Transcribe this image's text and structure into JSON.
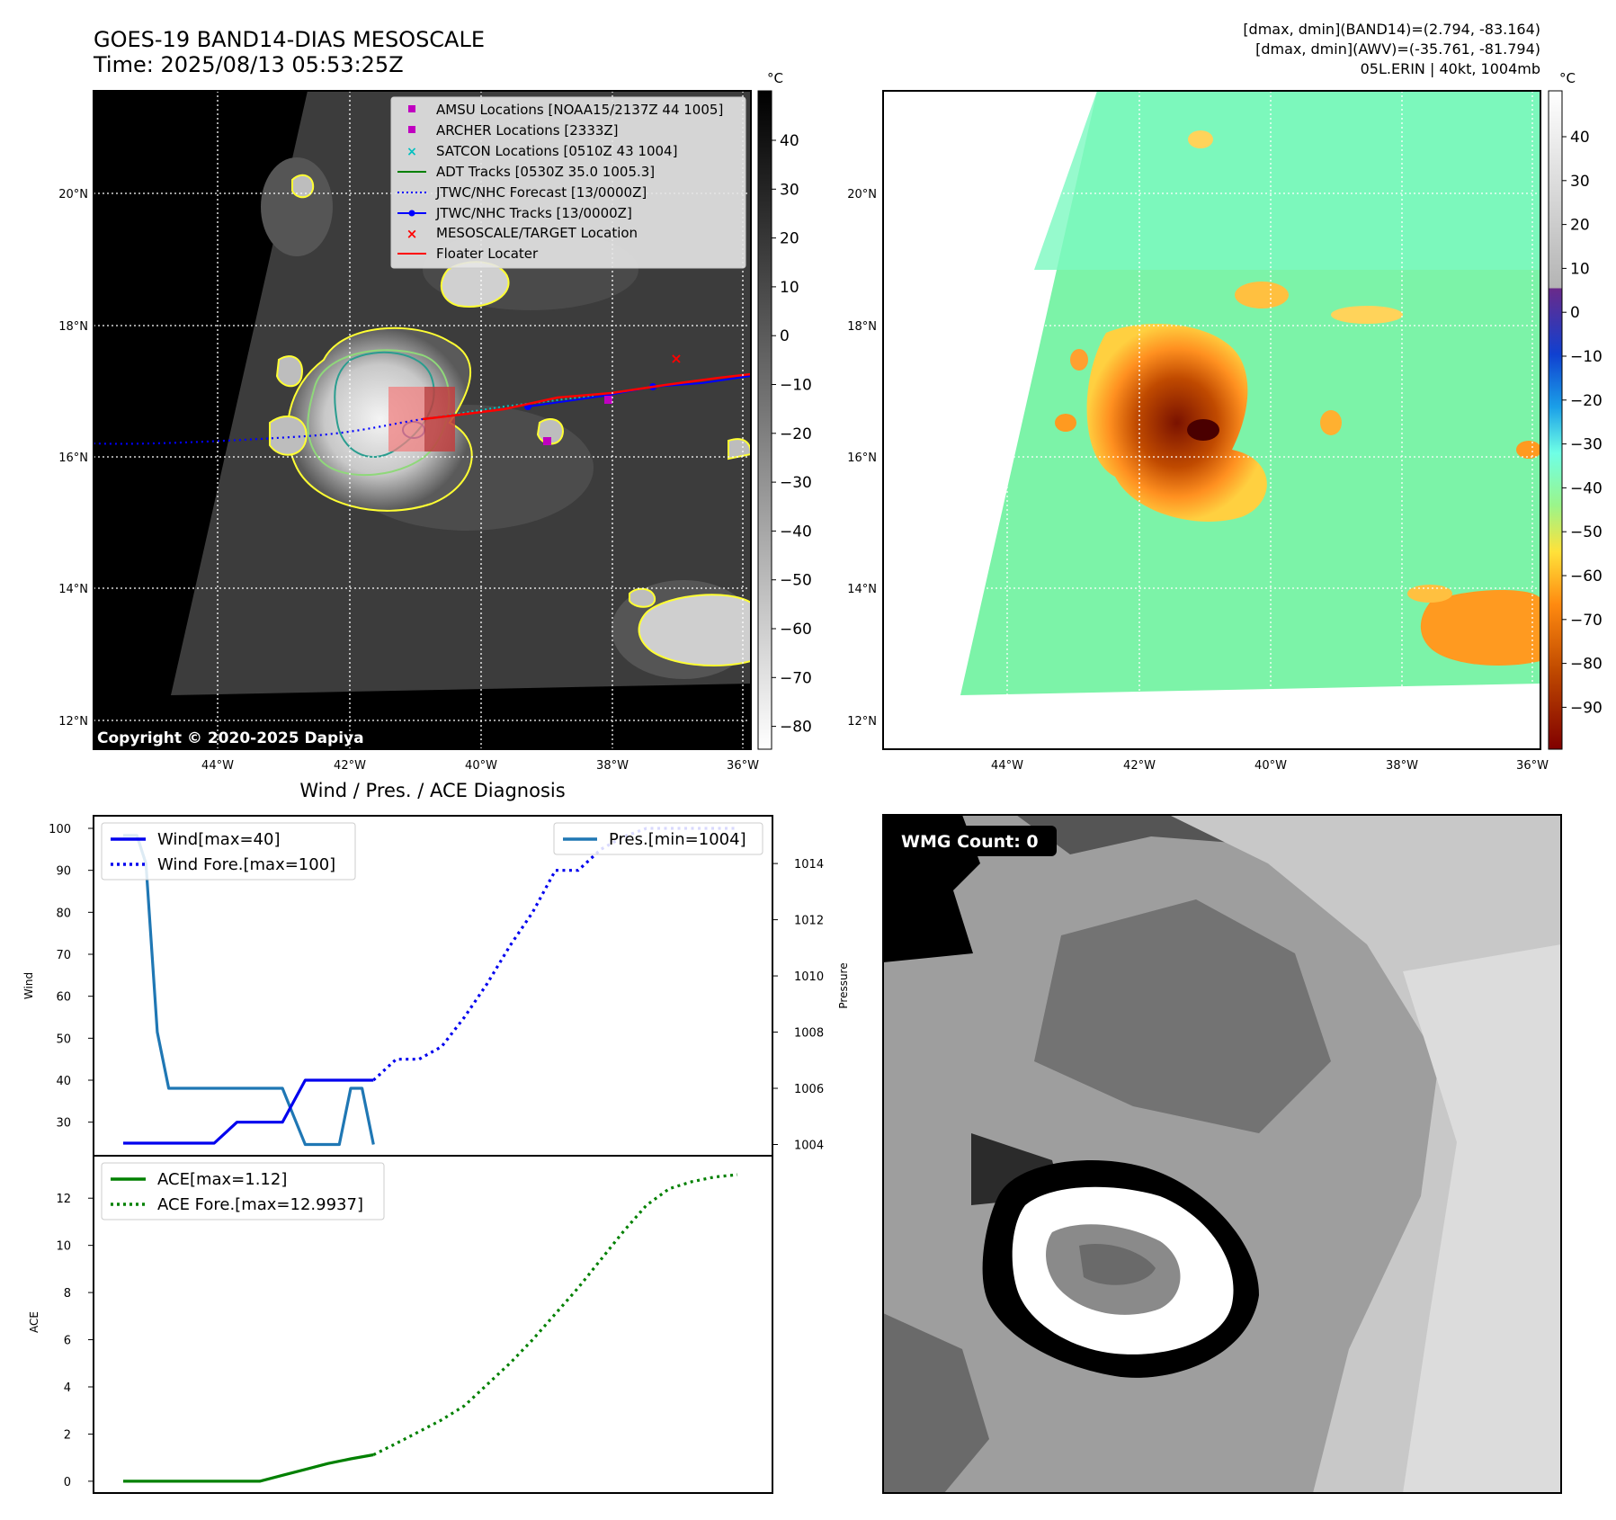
{
  "header": {
    "title_line1": "GOES-19 BAND14-DIAS MESOSCALE",
    "title_line2": "Time: 2025/08/13 05:53:25Z",
    "info_line1": "[dmax, dmin](BAND14)=(2.794, -83.164)",
    "info_line2": "[dmax, dmin](AWV)=(-35.761, -81.794)",
    "info_line3": "05L.ERIN | 40kt, 1004mb"
  },
  "map_axes": {
    "lon_labels": [
      "44°W",
      "42°W",
      "40°W",
      "38°W",
      "36°W"
    ],
    "lat_labels": [
      "20°N",
      "18°N",
      "16°N",
      "14°N",
      "12°N"
    ]
  },
  "colorbar_left": {
    "unit": "°C",
    "ticks": [
      "40",
      "30",
      "20",
      "10",
      "0",
      "−10",
      "−20",
      "−30",
      "−40",
      "−50",
      "−60",
      "−70",
      "−80"
    ]
  },
  "colorbar_right": {
    "unit": "°C",
    "ticks": [
      "40",
      "30",
      "20",
      "10",
      "0",
      "−10",
      "−20",
      "−30",
      "−40",
      "−50",
      "−60",
      "−70",
      "−80",
      "−90"
    ]
  },
  "legend": {
    "items": [
      "AMSU Locations [NOAA15/2137Z 44 1005]",
      "ARCHER Locations [2333Z]",
      "SATCON Locations [0510Z 43 1004]",
      "ADT Tracks [0530Z 35.0 1005.3]",
      "JTWC/NHC Forecast [13/0000Z]",
      "JTWC/NHC Tracks [13/0000Z]",
      "MESOSCALE/TARGET Location",
      "Floater Locater"
    ],
    "colors": {
      "amsu": "#c000c0",
      "archer": "#c000c0",
      "satcon": "#00c0c0",
      "adt": "#008000",
      "forecast": "#0000ff",
      "tracks": "#0000ff",
      "target": "#ff0000",
      "floater": "#ff0000"
    }
  },
  "copyright": "Copyright © 2020-2025 Dapiya",
  "wmg": {
    "label": "WMG Count: 0"
  },
  "chart_data": [
    {
      "type": "line",
      "title": "Wind / Pres. / ACE Diagnosis",
      "ylabel": "Wind",
      "y2label": "Pressure",
      "ylim": [
        22,
        103
      ],
      "y2lim": [
        1003.6,
        1015.7
      ],
      "yticks": [
        30,
        40,
        50,
        60,
        70,
        80,
        90,
        100
      ],
      "y2ticks": [
        1004,
        1006,
        1008,
        1010,
        1012,
        1014
      ],
      "series": [
        {
          "name": "Wind[max=40]",
          "style": "solid",
          "color": "#0000ee",
          "axis": "left",
          "x": [
            0,
            1,
            2,
            3,
            4,
            5,
            6,
            7,
            8,
            9,
            10,
            11
          ],
          "values": [
            25,
            25,
            25,
            25,
            25,
            30,
            30,
            30,
            40,
            40,
            40,
            40
          ]
        },
        {
          "name": "Wind Fore.[max=100]",
          "style": "dotted",
          "color": "#0000ee",
          "axis": "left",
          "x": [
            11,
            12,
            13,
            14,
            15,
            16,
            17,
            18,
            19,
            20,
            21,
            22,
            23,
            24,
            25,
            26,
            27
          ],
          "values": [
            40,
            45,
            45,
            48,
            55,
            63,
            72,
            80,
            90,
            90,
            95,
            98,
            100,
            100,
            100,
            100,
            100
          ]
        },
        {
          "name": "Pres.[min=1004]",
          "style": "solid",
          "color": "#1f77b4",
          "axis": "right",
          "x": [
            0,
            0.6,
            1,
            1.5,
            2,
            2.5,
            3,
            4,
            5,
            6,
            7,
            7.5,
            8,
            9,
            9.5,
            10,
            10.5,
            11
          ],
          "values": [
            1015,
            1015,
            1014,
            1008,
            1006,
            1006,
            1006,
            1006,
            1006,
            1006,
            1006,
            1005,
            1004,
            1004,
            1004,
            1006,
            1006,
            1004
          ]
        }
      ]
    },
    {
      "type": "line",
      "ylabel": "ACE",
      "ylim": [
        -0.5,
        13.8
      ],
      "yticks": [
        0,
        2,
        4,
        6,
        8,
        10,
        12
      ],
      "series": [
        {
          "name": "ACE[max=1.12]",
          "style": "solid",
          "color": "#008000",
          "x": [
            0,
            1,
            2,
            3,
            4,
            5,
            6,
            7,
            8,
            9,
            10,
            11
          ],
          "values": [
            0,
            0,
            0,
            0,
            0,
            0,
            0,
            0.25,
            0.5,
            0.75,
            0.95,
            1.12
          ]
        },
        {
          "name": "ACE Fore.[max=12.9937]",
          "style": "dotted",
          "color": "#008000",
          "x": [
            11,
            12,
            13,
            14,
            15,
            16,
            17,
            18,
            19,
            20,
            21,
            22,
            23,
            24,
            25,
            26,
            27
          ],
          "values": [
            1.12,
            1.6,
            2.1,
            2.6,
            3.2,
            4.1,
            5.0,
            6.0,
            7.1,
            8.2,
            9.4,
            10.6,
            11.7,
            12.4,
            12.7,
            12.9,
            12.9937
          ]
        }
      ]
    }
  ]
}
